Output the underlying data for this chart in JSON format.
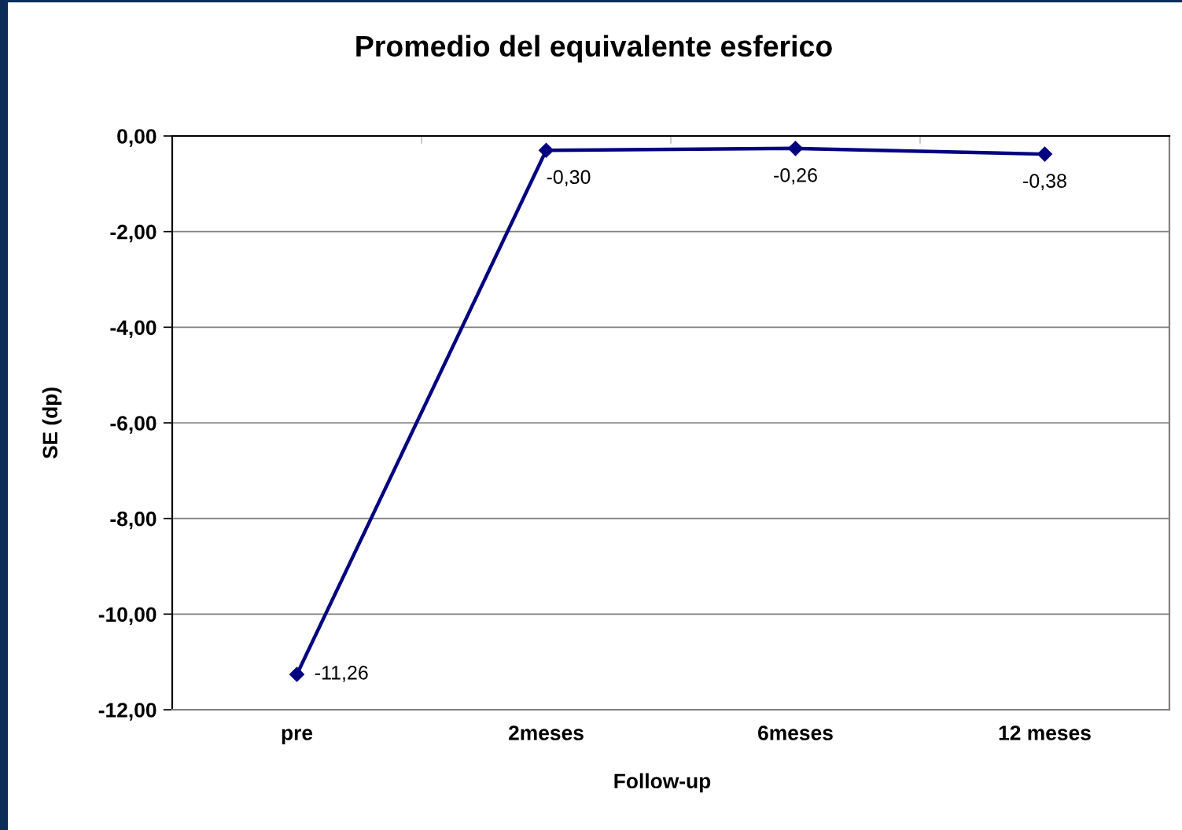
{
  "chart_data": {
    "type": "line",
    "title": "Promedio del equivalente esferico",
    "xlabel": "Follow-up",
    "ylabel": "SE (dp)",
    "categories": [
      "pre",
      "2meses",
      "6meses",
      "12 meses"
    ],
    "series": [
      {
        "color": "#000080",
        "values": [
          -11.26,
          -0.3,
          -0.26,
          -0.38
        ],
        "value_labels": [
          "-11,26",
          "-0,30",
          "-0,26",
          "-0,38"
        ]
      }
    ],
    "ylim": [
      -12,
      0
    ],
    "yticks": [
      {
        "value": 0,
        "label": "0,00"
      },
      {
        "value": -2,
        "label": "-2,00"
      },
      {
        "value": -4,
        "label": "-4,00"
      },
      {
        "value": -6,
        "label": "-6,00"
      },
      {
        "value": -8,
        "label": "-8,00"
      },
      {
        "value": -10,
        "label": "-10,00"
      },
      {
        "value": -12,
        "label": "-12,00"
      }
    ],
    "grid": "y",
    "marker": "diamond",
    "line_style": "solid"
  }
}
